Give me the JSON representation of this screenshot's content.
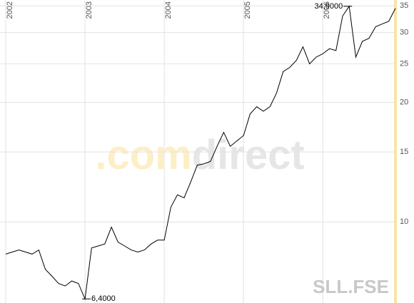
{
  "chart_data": {
    "type": "line",
    "categories": [
      "2002",
      null,
      null,
      null,
      null,
      null,
      null,
      null,
      null,
      null,
      null,
      null,
      "2003",
      null,
      null,
      null,
      null,
      null,
      null,
      null,
      null,
      null,
      null,
      null,
      "2004",
      null,
      null,
      null,
      null,
      null,
      null,
      null,
      null,
      null,
      null,
      null,
      "2005",
      null,
      null,
      null,
      null,
      null,
      null,
      null,
      null,
      null,
      null,
      null,
      "2006",
      null,
      null,
      null,
      null,
      null,
      null,
      null,
      null,
      null,
      null,
      null
    ],
    "series": [
      {
        "name": "SLL.FSE",
        "color": "#000000",
        "values": [
          8.3,
          8.4,
          8.5,
          8.4,
          8.3,
          8.5,
          7.6,
          7.3,
          7.0,
          6.9,
          7.1,
          7.0,
          6.4,
          8.6,
          8.7,
          8.8,
          9.7,
          8.9,
          8.7,
          8.5,
          8.4,
          8.5,
          8.8,
          9.0,
          9.0,
          10.9,
          11.7,
          11.5,
          12.6,
          13.9,
          14.0,
          14.2,
          15.5,
          16.8,
          15.5,
          16.0,
          16.5,
          18.7,
          19.5,
          19.0,
          19.5,
          21.1,
          23.9,
          24.5,
          25.5,
          27.6,
          25.0,
          26.0,
          26.5,
          27.3,
          27.0,
          33.0,
          34.9,
          26.0,
          28.5,
          29.0,
          31.0,
          31.5,
          32.0,
          34.5
        ]
      }
    ],
    "ylim": [
      6.25,
      36.2
    ],
    "log_y": true,
    "yticks": [
      10,
      15,
      20,
      25,
      30,
      35
    ],
    "grid": true,
    "annotations": [
      "34,9000",
      "6,4000"
    ],
    "watermark": [
      ".com",
      "direct"
    ],
    "symbol": "SLL.FSE"
  }
}
